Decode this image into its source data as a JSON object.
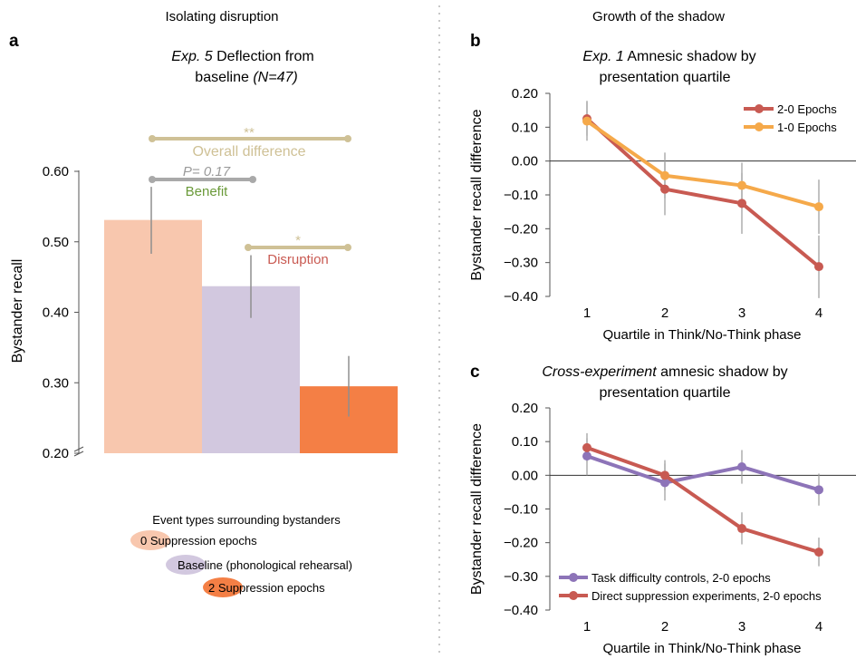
{
  "colors": {
    "bar_zero": "#f8c7ae",
    "bar_baseline": "#d2c8df",
    "bar_two": "#f47f45",
    "line_red": "#c85a52",
    "line_orange": "#f5a94a",
    "line_purple": "#8d74b8",
    "bracket_overall": "#cfc196",
    "bracket_benefit": "#a9a9a9",
    "text_benefit": "#6b9a3a",
    "text_disruption": "#c95a52",
    "text_pvalue": "#9a9a9a",
    "errorbar": "#8f8f8f"
  },
  "left": {
    "section_title": "Isolating disruption",
    "panel_letter": "a",
    "title_italic": "Exp. 5",
    "title_rest": " Deflection from",
    "title_line2": "baseline ",
    "title_n": "(N=47)",
    "legend": {
      "title": "Event types surrounding bystanders",
      "items": [
        "0 Suppression epochs",
        "Baseline (phonological rehearsal)",
        "2 Suppression epochs"
      ]
    },
    "brackets": {
      "overall_label": "Overall difference",
      "overall_stars": "**",
      "benefit_label": "Benefit",
      "benefit_p": "P= 0.17",
      "disruption_label": "Disruption",
      "disruption_stars": "*"
    }
  },
  "right": {
    "section_title": "Growth of the shadow",
    "b": {
      "letter": "b",
      "title_italic": "Exp. 1",
      "title_rest": " Amnesic shadow by",
      "title_line2": "presentation quartile"
    },
    "c": {
      "letter": "c",
      "title_italic": "Cross-experiment",
      "title_rest": " amnesic shadow by",
      "title_line2": "presentation quartile"
    }
  },
  "chart_data": [
    {
      "type": "bar",
      "categories": [
        "0 Suppression epochs",
        "Baseline (phonological rehearsal)",
        "2 Suppression epochs"
      ],
      "values": [
        0.531,
        0.437,
        0.295
      ],
      "error_low": [
        0.483,
        0.392,
        0.252
      ],
      "error_high": [
        0.578,
        0.481,
        0.338
      ],
      "ylabel": "Bystander recall",
      "ylim": [
        0.2,
        0.6
      ],
      "yticks": [
        "0.20",
        "0.30",
        "0.40",
        "0.50",
        "0.60"
      ],
      "axis_break": true
    },
    {
      "type": "line",
      "x": [
        1,
        2,
        3,
        4
      ],
      "xlabel": "Quartile in Think/No-Think phase",
      "ylabel": "Bystander recall difference",
      "ylim": [
        -0.4,
        0.2
      ],
      "yticks": [
        "0.20",
        "0.10",
        "0.00",
        "−0.10",
        "−0.20",
        "−0.30",
        "−0.40"
      ],
      "legend_position": "top-right",
      "series": [
        {
          "name": "2-0 Epochs",
          "values": [
            0.125,
            -0.083,
            -0.125,
            -0.312
          ],
          "error_low": [
            0.075,
            -0.16,
            -0.215,
            -0.405
          ],
          "error_high": [
            0.175,
            -0.005,
            -0.035,
            -0.22
          ]
        },
        {
          "name": "1-0 Epochs",
          "values": [
            0.118,
            -0.043,
            -0.072,
            -0.135
          ],
          "error_low": [
            0.06,
            -0.11,
            -0.14,
            -0.215
          ],
          "error_high": [
            0.178,
            0.025,
            -0.005,
            -0.055
          ]
        }
      ]
    },
    {
      "type": "line",
      "x": [
        1,
        2,
        3,
        4
      ],
      "xlabel": "Quartile in Think/No-Think phase",
      "ylabel": "Bystander recall difference",
      "ylim": [
        -0.4,
        0.2
      ],
      "yticks": [
        "0.20",
        "0.10",
        "0.00",
        "−0.10",
        "−0.20",
        "−0.30",
        "−0.40"
      ],
      "legend_position": "bottom-left",
      "series": [
        {
          "name": "Task difficulty controls, 2-0 epochs",
          "values": [
            0.057,
            -0.022,
            0.025,
            -0.043
          ],
          "error_low": [
            0.0,
            -0.075,
            -0.025,
            -0.09
          ],
          "error_high": [
            0.11,
            0.035,
            0.075,
            0.005
          ]
        },
        {
          "name": "Direct suppression experiments, 2-0 epochs",
          "values": [
            0.082,
            0.0,
            -0.158,
            -0.228
          ],
          "error_low": [
            0.04,
            -0.045,
            -0.205,
            -0.27
          ],
          "error_high": [
            0.125,
            0.045,
            -0.11,
            -0.185
          ]
        }
      ]
    }
  ]
}
